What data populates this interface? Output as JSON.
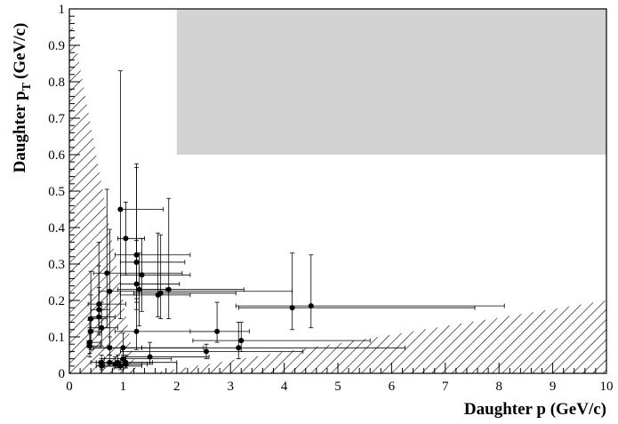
{
  "chart_data": {
    "type": "scatter",
    "xlabel": "Daughter p (GeV/c)",
    "ylabel_main": "Daughter p",
    "ylabel_sub": "T",
    "ylabel_unit": "(GeV/c)",
    "xlim": [
      0,
      10
    ],
    "ylim": [
      0,
      1
    ],
    "x_ticks": [
      "0",
      "1",
      "2",
      "3",
      "4",
      "5",
      "6",
      "7",
      "8",
      "9",
      "10"
    ],
    "y_ticks": [
      "0",
      "0.1",
      "0.2",
      "0.3",
      "0.4",
      "0.5",
      "0.6",
      "0.7",
      "0.8",
      "0.9",
      "1"
    ],
    "grid": false,
    "legend": "none",
    "excluded_region_color": "#d3d3d3",
    "marker_color": "#000000",
    "excluded_region": {
      "x": [
        2.0,
        10.0
      ],
      "y": [
        0.6,
        1.0
      ]
    },
    "hatched_low_p_boundary": {
      "x": [
        0.0,
        1.25
      ],
      "y": [
        1.0,
        0.0
      ]
    },
    "hatched_high_p_boundary": {
      "x": [
        1.5,
        10.0
      ],
      "y": [
        0.0,
        0.2
      ]
    },
    "points": [
      {
        "x": 0.95,
        "y": 0.45,
        "xerr": [
          0.0,
          0.8
        ],
        "yerr": [
          0.3,
          0.38
        ]
      },
      {
        "x": 1.05,
        "y": 0.37,
        "xerr": [
          0.15,
          0.35
        ],
        "yerr": [
          0.1,
          0.1
        ]
      },
      {
        "x": 1.25,
        "y": 0.325,
        "xerr": [
          0.4,
          1.0
        ],
        "yerr": [
          0.15,
          0.25
        ]
      },
      {
        "x": 1.25,
        "y": 0.305,
        "xerr": [
          0.3,
          0.9
        ],
        "yerr": [
          0.1,
          0.26
        ]
      },
      {
        "x": 1.35,
        "y": 0.27,
        "xerr": [
          0.4,
          0.9
        ],
        "yerr": [
          0.1,
          0.1
        ]
      },
      {
        "x": 1.25,
        "y": 0.245,
        "xerr": [
          0.3,
          0.8
        ],
        "yerr": [
          0.05,
          0.12
        ]
      },
      {
        "x": 1.3,
        "y": 0.23,
        "xerr": [
          0.4,
          0.5
        ],
        "yerr": [
          0.1,
          0.1
        ]
      },
      {
        "x": 1.65,
        "y": 0.215,
        "xerr": [
          0.7,
          0.6
        ],
        "yerr": [
          0.06,
          0.17
        ]
      },
      {
        "x": 1.7,
        "y": 0.22,
        "xerr": [
          0.5,
          1.4
        ],
        "yerr": [
          0.07,
          0.16
        ]
      },
      {
        "x": 1.85,
        "y": 0.23,
        "xerr": [
          0.6,
          1.4
        ],
        "yerr": [
          0.08,
          0.25
        ]
      },
      {
        "x": 0.7,
        "y": 0.275,
        "xerr": [
          0.25,
          1.4
        ],
        "yerr": [
          0.15,
          0.23
        ]
      },
      {
        "x": 0.75,
        "y": 0.225,
        "xerr": [
          0.2,
          3.4
        ],
        "yerr": [
          0.15,
          0.17
        ]
      },
      {
        "x": 0.55,
        "y": 0.19,
        "xerr": [
          0.2,
          0.5
        ],
        "yerr": [
          0.08,
          0.17
        ]
      },
      {
        "x": 0.55,
        "y": 0.175,
        "xerr": [
          0.15,
          0.2
        ],
        "yerr": [
          0.05,
          0.12
        ]
      },
      {
        "x": 0.55,
        "y": 0.155,
        "xerr": [
          0.15,
          0.3
        ],
        "yerr": [
          0.05,
          0.08
        ]
      },
      {
        "x": 0.4,
        "y": 0.15,
        "xerr": [
          0.05,
          0.3
        ],
        "yerr": [
          0.06,
          0.13
        ]
      },
      {
        "x": 0.4,
        "y": 0.115,
        "xerr": [
          0.05,
          0.2
        ],
        "yerr": [
          0.05,
          0.1
        ]
      },
      {
        "x": 0.6,
        "y": 0.125,
        "xerr": [
          0.2,
          0.3
        ],
        "yerr": [
          0.05,
          0.07
        ]
      },
      {
        "x": 0.38,
        "y": 0.085,
        "xerr": [
          0.05,
          0.2
        ],
        "yerr": [
          0.03,
          0.06
        ]
      },
      {
        "x": 0.38,
        "y": 0.075,
        "xerr": [
          0.05,
          0.2
        ],
        "yerr": [
          0.03,
          0.05
        ]
      },
      {
        "x": 1.25,
        "y": 0.115,
        "xerr": [
          0.4,
          1.5
        ],
        "yerr": [
          0.05,
          0.1
        ]
      },
      {
        "x": 2.75,
        "y": 0.115,
        "xerr": [
          0.5,
          0.6
        ],
        "yerr": [
          0.03,
          0.08
        ]
      },
      {
        "x": 3.2,
        "y": 0.09,
        "xerr": [
          0.9,
          2.4
        ],
        "yerr": [
          0.03,
          0.05
        ]
      },
      {
        "x": 3.15,
        "y": 0.07,
        "xerr": [
          1.8,
          3.1
        ],
        "yerr": [
          0.03,
          0.07
        ]
      },
      {
        "x": 2.55,
        "y": 0.06,
        "xerr": [
          1.6,
          1.8
        ],
        "yerr": [
          0.02,
          0.02
        ]
      },
      {
        "x": 4.15,
        "y": 0.18,
        "xerr": [
          1.0,
          3.4
        ],
        "yerr": [
          0.06,
          0.15
        ]
      },
      {
        "x": 4.5,
        "y": 0.185,
        "xerr": [
          1.4,
          3.6
        ],
        "yerr": [
          0.06,
          0.14
        ]
      },
      {
        "x": 1.5,
        "y": 0.045,
        "xerr": [
          0.5,
          1.1
        ],
        "yerr": [
          0.02,
          0.04
        ]
      },
      {
        "x": 1.0,
        "y": 0.07,
        "xerr": [
          0.6,
          1.5
        ],
        "yerr": [
          0.02,
          0.04
        ]
      },
      {
        "x": 0.75,
        "y": 0.07,
        "xerr": [
          0.3,
          0.6
        ],
        "yerr": [
          0.02,
          0.03
        ]
      },
      {
        "x": 1.0,
        "y": 0.04,
        "xerr": [
          0.35,
          0.9
        ],
        "yerr": [
          0.02,
          0.03
        ]
      },
      {
        "x": 0.9,
        "y": 0.03,
        "xerr": [
          0.5,
          1.1
        ],
        "yerr": [
          0.015,
          0.02
        ]
      },
      {
        "x": 1.05,
        "y": 0.03,
        "xerr": [
          0.2,
          0.5
        ],
        "yerr": [
          0.015,
          0.02
        ]
      },
      {
        "x": 0.85,
        "y": 0.025,
        "xerr": [
          0.2,
          0.5
        ],
        "yerr": [
          0.01,
          0.02
        ]
      },
      {
        "x": 0.95,
        "y": 0.02,
        "xerr": [
          0.3,
          0.4
        ],
        "yerr": [
          0.01,
          0.02
        ]
      },
      {
        "x": 1.05,
        "y": 0.025,
        "xerr": [
          0.3,
          0.4
        ],
        "yerr": [
          0.01,
          0.02
        ]
      },
      {
        "x": 0.6,
        "y": 0.02,
        "xerr": [
          0.1,
          0.3
        ],
        "yerr": [
          0.01,
          0.02
        ]
      },
      {
        "x": 0.6,
        "y": 0.03,
        "xerr": [
          0.1,
          0.3
        ],
        "yerr": [
          0.01,
          0.02
        ]
      },
      {
        "x": 0.75,
        "y": 0.03,
        "xerr": [
          0.2,
          0.3
        ],
        "yerr": [
          0.01,
          0.02
        ]
      }
    ]
  }
}
